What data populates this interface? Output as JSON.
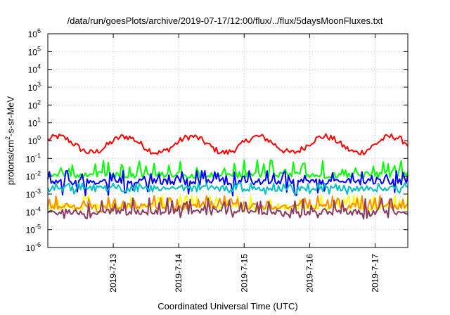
{
  "chart_data": {
    "type": "line",
    "title": "/data/run/goesPlots/archive/2019-07-17/12:00/flux/../flux/5daysMoonFluxes.txt",
    "xlabel": "Coordinated Universal Time (UTC)",
    "ylabel": "protons/cm2-s-sr-MeV",
    "y_scale": "log",
    "ylim": [
      1e-06,
      1000000.0
    ],
    "y_ticks": [
      {
        "base": "10",
        "exp": "6"
      },
      {
        "base": "10",
        "exp": "5"
      },
      {
        "base": "10",
        "exp": "4"
      },
      {
        "base": "10",
        "exp": "3"
      },
      {
        "base": "10",
        "exp": "2"
      },
      {
        "base": "10",
        "exp": "1"
      },
      {
        "base": "10",
        "exp": "0"
      },
      {
        "base": "10",
        "exp": "-1"
      },
      {
        "base": "10",
        "exp": "-2"
      },
      {
        "base": "10",
        "exp": "-3"
      },
      {
        "base": "10",
        "exp": "-4"
      },
      {
        "base": "10",
        "exp": "-5"
      },
      {
        "base": "10",
        "exp": "-6"
      }
    ],
    "xlim": [
      "2019-07-12 00:00",
      "2019-07-17 12:00"
    ],
    "x_ticks": [
      "2019-7-13",
      "2019-7-14",
      "2019-7-15",
      "2019-7-16",
      "2019-7-17"
    ],
    "grid": true,
    "series": [
      {
        "color": "#ff0000",
        "typical": 0.6,
        "range": [
          0.05,
          4
        ]
      },
      {
        "color": "#00ff00",
        "typical": 0.012,
        "range": [
          0.008,
          0.08
        ]
      },
      {
        "color": "#0000ff",
        "typical": 0.005,
        "range": [
          0.0008,
          0.02
        ]
      },
      {
        "color": "#00c0c0",
        "typical": 0.002,
        "range": [
          0.001,
          0.004
        ]
      },
      {
        "color": "#ffff00",
        "typical": 0.0002,
        "range": [
          0.0001,
          0.0008
        ]
      },
      {
        "color": "#ff8c00",
        "typical": 0.0002,
        "range": [
          0.0001,
          0.0008
        ]
      },
      {
        "color": "#8b3a62",
        "typical": 0.0001,
        "range": [
          4e-05,
          0.0006
        ]
      }
    ]
  }
}
